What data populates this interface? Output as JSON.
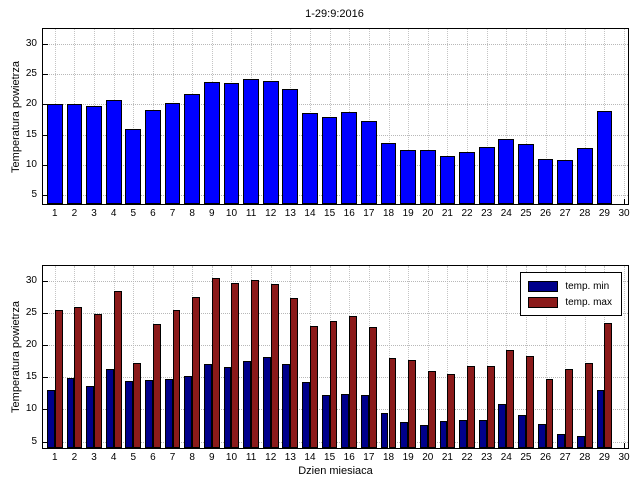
{
  "figure": {
    "title": "1-29:9:2016"
  },
  "chart_data": [
    {
      "name": "daily-temperature",
      "type": "bar",
      "title": "1-29:9:2016",
      "xlabel": "",
      "ylabel": "Temperatura powietrza",
      "xlim": [
        0.4,
        30.2
      ],
      "ylim": [
        3.5,
        32.5
      ],
      "yticks": [
        5,
        10,
        15,
        20,
        25,
        30
      ],
      "xticks": [
        1,
        2,
        3,
        4,
        5,
        6,
        7,
        8,
        9,
        10,
        11,
        12,
        13,
        14,
        15,
        16,
        17,
        18,
        19,
        20,
        21,
        22,
        23,
        24,
        25,
        26,
        27,
        28,
        29,
        30
      ],
      "grid": true,
      "group_width": 0.8,
      "categories": [
        1,
        2,
        3,
        4,
        5,
        6,
        7,
        8,
        9,
        10,
        11,
        12,
        13,
        14,
        15,
        16,
        17,
        18,
        19,
        20,
        21,
        22,
        23,
        24,
        25,
        26,
        27,
        28,
        29
      ],
      "series": [
        {
          "name": "temperatura",
          "color": "#0000ff",
          "values": [
            20,
            20.1,
            19.8,
            20.8,
            16,
            19,
            20.2,
            21.8,
            23.7,
            23.5,
            24.2,
            23.9,
            22.5,
            18.5,
            18,
            18.8,
            17.2,
            13.6,
            12.5,
            12.4,
            11.5,
            12.2,
            12.9,
            14.2,
            13.5,
            11,
            10.8,
            12.8,
            18.9
          ]
        }
      ],
      "legend": {
        "show": false,
        "entries": []
      }
    },
    {
      "name": "min-max-temperature",
      "type": "grouped-bar",
      "title": "",
      "xlabel": "Dzien miesiaca",
      "ylabel": "Temperatura powietrza",
      "xlim": [
        0.4,
        30.2
      ],
      "ylim": [
        4,
        32.3
      ],
      "yticks": [
        5,
        10,
        15,
        20,
        25,
        30
      ],
      "xticks": [
        1,
        2,
        3,
        4,
        5,
        6,
        7,
        8,
        9,
        10,
        11,
        12,
        13,
        14,
        15,
        16,
        17,
        18,
        19,
        20,
        21,
        22,
        23,
        24,
        25,
        26,
        27,
        28,
        29,
        30
      ],
      "grid": true,
      "group_width": 0.8,
      "categories": [
        1,
        2,
        3,
        4,
        5,
        6,
        7,
        8,
        9,
        10,
        11,
        12,
        13,
        14,
        15,
        16,
        17,
        18,
        19,
        20,
        21,
        22,
        23,
        24,
        25,
        26,
        27,
        28,
        29
      ],
      "series": [
        {
          "name": "temp. min",
          "color": "#00008b",
          "values": [
            13,
            14.9,
            13.7,
            16.3,
            14.4,
            14.5,
            14.8,
            15.2,
            17,
            16.6,
            17.5,
            18.2,
            17,
            14.2,
            12.2,
            12.4,
            12.2,
            9.4,
            8,
            7.5,
            8.2,
            8.3,
            8.3,
            10.8,
            9.1,
            7.8,
            6.2,
            5.8,
            13
          ]
        },
        {
          "name": "temp. max",
          "color": "#8b1a1a",
          "values": [
            25.5,
            26,
            24.8,
            28.4,
            17.2,
            23.3,
            25.5,
            27.5,
            30.5,
            29.7,
            30.2,
            29.5,
            27.3,
            23,
            23.8,
            24.5,
            22.8,
            18,
            17.7,
            16,
            15.5,
            16.8,
            16.7,
            19.3,
            18.3,
            14.8,
            16.3,
            17.2,
            23.5
          ]
        }
      ],
      "legend": {
        "show": true,
        "position": "top-right",
        "entries": [
          "temp. min",
          "temp. max"
        ]
      }
    }
  ]
}
